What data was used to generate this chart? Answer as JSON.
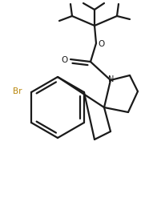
{
  "bg_color": "#ffffff",
  "line_color": "#1a1a1a",
  "br_color": "#b8860b",
  "lw": 1.6,
  "figsize": [
    1.96,
    2.53
  ],
  "dpi": 100,
  "xlim": [
    0,
    196
  ],
  "ylim": [
    0,
    253
  ]
}
